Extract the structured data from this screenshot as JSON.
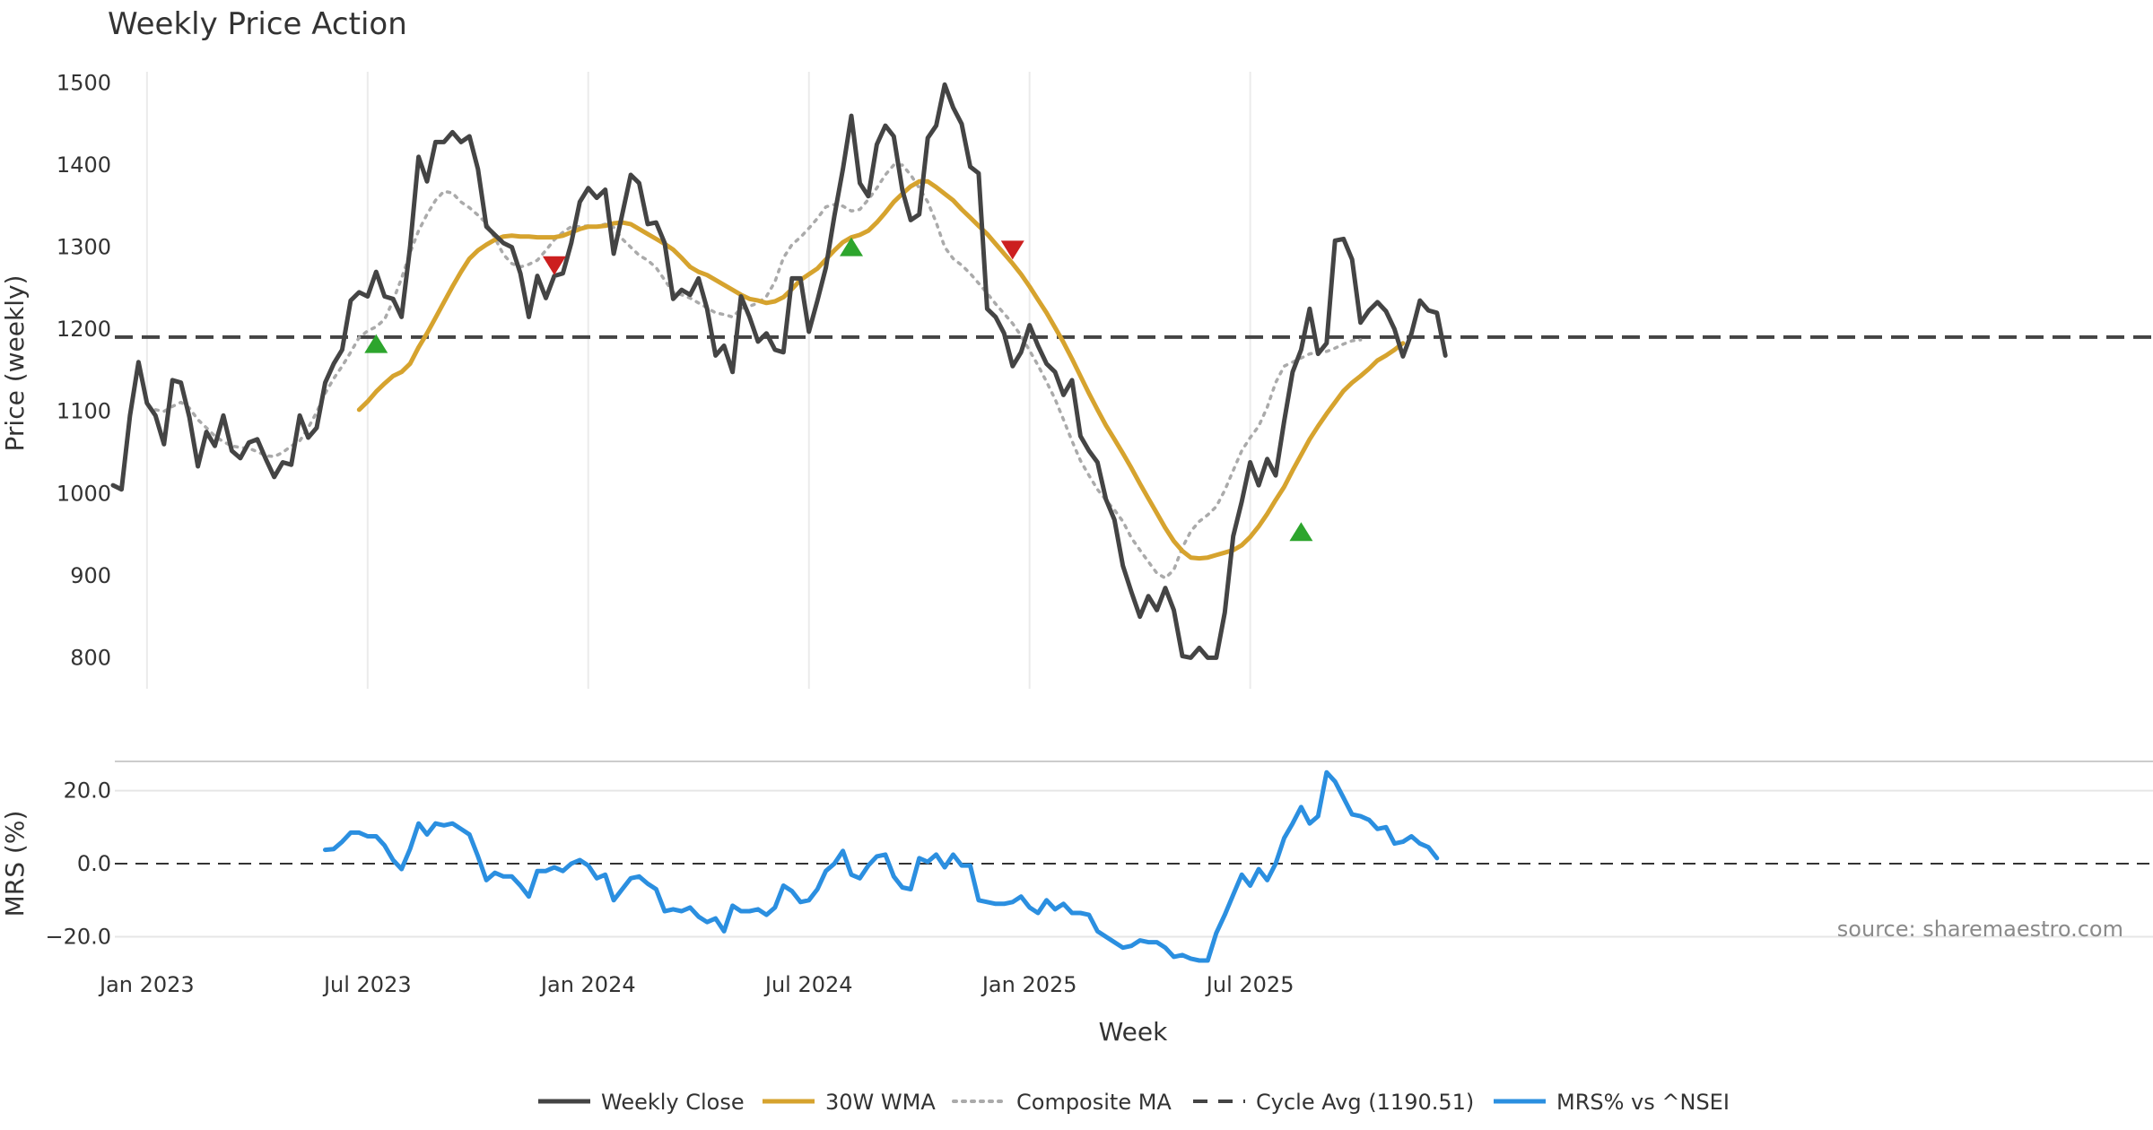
{
  "chart_data": {
    "type": "line",
    "title": "Weekly Price Action",
    "xlabel": "Week",
    "x_ticks": [
      "Jan 2023",
      "Jul 2023",
      "Jan 2024",
      "Jul 2024",
      "Jan 2025",
      "Jul 2025"
    ],
    "source_note": "source: sharemaestro.com",
    "price_panel": {
      "ylabel": "Price (weekly)",
      "ylim": [
        760,
        1530
      ],
      "y_ticks": [
        "800",
        "900",
        "1000",
        "1100",
        "1200",
        "1300",
        "1400",
        "1500"
      ],
      "cycle_avg": 1190.51,
      "series": [
        {
          "name": "Weekly Close",
          "color": "#444444",
          "style": "solid",
          "start_index": 0,
          "values": [
            1010,
            1005,
            1095,
            1160,
            1110,
            1095,
            1060,
            1138,
            1135,
            1093,
            1033,
            1075,
            1058,
            1095,
            1052,
            1043,
            1062,
            1066,
            1042,
            1020,
            1038,
            1035,
            1095,
            1068,
            1080,
            1135,
            1158,
            1175,
            1235,
            1245,
            1240,
            1270,
            1240,
            1237,
            1215,
            1300,
            1410,
            1380,
            1428,
            1428,
            1440,
            1428,
            1435,
            1395,
            1325,
            1315,
            1305,
            1300,
            1268,
            1215,
            1265,
            1238,
            1265,
            1268,
            1305,
            1355,
            1372,
            1360,
            1370,
            1292,
            1340,
            1388,
            1378,
            1328,
            1330,
            1305,
            1237,
            1248,
            1242,
            1262,
            1225,
            1168,
            1180,
            1148,
            1240,
            1215,
            1185,
            1195,
            1175,
            1172,
            1262,
            1262,
            1197,
            1235,
            1275,
            1338,
            1395,
            1460,
            1378,
            1362,
            1425,
            1448,
            1435,
            1370,
            1333,
            1340,
            1433,
            1448,
            1498,
            1470,
            1450,
            1398,
            1390,
            1225,
            1215,
            1195,
            1155,
            1172,
            1205,
            1180,
            1158,
            1148,
            1120,
            1138,
            1070,
            1052,
            1038,
            993,
            968,
            912,
            880,
            850,
            875,
            858,
            885,
            858,
            802,
            800,
            812,
            800,
            800,
            855,
            948,
            990,
            1038,
            1010,
            1042,
            1022,
            1088,
            1148,
            1175,
            1225,
            1170,
            1183,
            1308,
            1310,
            1285,
            1208,
            1223,
            1233,
            1222,
            1200,
            1167,
            1195,
            1235,
            1223,
            1220,
            1168
          ]
        },
        {
          "name": "30W WMA",
          "color": "#D6A32E",
          "style": "solid",
          "start_index": 29,
          "values": [
            1102,
            1112,
            1124,
            1134,
            1143,
            1148,
            1158,
            1178,
            1195,
            1214,
            1233,
            1252,
            1270,
            1286,
            1296,
            1303,
            1309,
            1313,
            1314,
            1313,
            1313,
            1312,
            1312,
            1312,
            1314,
            1318,
            1322,
            1325,
            1325,
            1326,
            1329,
            1330,
            1328,
            1322,
            1316,
            1310,
            1304,
            1297,
            1287,
            1276,
            1270,
            1266,
            1260,
            1254,
            1248,
            1242,
            1237,
            1235,
            1232,
            1234,
            1239,
            1249,
            1260,
            1267,
            1274,
            1285,
            1296,
            1306,
            1312,
            1315,
            1320,
            1330,
            1342,
            1355,
            1365,
            1374,
            1380,
            1380,
            1373,
            1365,
            1357,
            1346,
            1336,
            1326,
            1316,
            1304,
            1292,
            1280,
            1267,
            1252,
            1236,
            1220,
            1202,
            1184,
            1164,
            1143,
            1122,
            1102,
            1083,
            1066,
            1049,
            1031,
            1012,
            994,
            976,
            958,
            942,
            930,
            922,
            921,
            922,
            925,
            928,
            931,
            937,
            947,
            960,
            975,
            992,
            1008,
            1028,
            1047,
            1066,
            1082,
            1097,
            1111,
            1125,
            1135,
            1143,
            1152,
            1162,
            1168,
            1175,
            1183
          ]
        },
        {
          "name": "Composite MA",
          "color": "#AAAAAA",
          "style": "dotted",
          "start_index": 5,
          "values": [
            1102,
            1100,
            1106,
            1111,
            1104,
            1090,
            1080,
            1070,
            1063,
            1058,
            1056,
            1055,
            1051,
            1046,
            1045,
            1050,
            1058,
            1064,
            1080,
            1099,
            1122,
            1140,
            1155,
            1172,
            1190,
            1198,
            1203,
            1212,
            1235,
            1262,
            1293,
            1320,
            1340,
            1357,
            1368,
            1366,
            1355,
            1348,
            1339,
            1329,
            1311,
            1291,
            1280,
            1276,
            1279,
            1284,
            1296,
            1309,
            1318,
            1325,
            1325,
            1326,
            1325,
            1328,
            1324,
            1310,
            1300,
            1290,
            1284,
            1275,
            1260,
            1245,
            1242,
            1238,
            1232,
            1226,
            1220,
            1218,
            1215,
            1225,
            1228,
            1232,
            1240,
            1258,
            1287,
            1303,
            1312,
            1323,
            1335,
            1349,
            1352,
            1350,
            1344,
            1346,
            1358,
            1372,
            1388,
            1400,
            1400,
            1388,
            1372,
            1355,
            1330,
            1300,
            1286,
            1278,
            1268,
            1256,
            1244,
            1231,
            1219,
            1207,
            1192,
            1174,
            1156,
            1136,
            1115,
            1090,
            1064,
            1040,
            1022,
            1005,
            992,
            980,
            966,
            946,
            931,
            917,
            903,
            897,
            907,
            934,
            954,
            966,
            974,
            984,
            1004,
            1028,
            1052,
            1068,
            1082,
            1105,
            1135,
            1155,
            1160,
            1165,
            1170,
            1172,
            1173,
            1177,
            1182,
            1186,
            1187
          ]
        }
      ],
      "markers": [
        {
          "type": "buy",
          "color": "#2DA52D",
          "week": 31,
          "price": 1182
        },
        {
          "type": "sell",
          "color": "#CC1F1F",
          "week": 52,
          "price": 1278
        },
        {
          "type": "buy",
          "color": "#2DA52D",
          "week": 87,
          "price": 1300
        },
        {
          "type": "sell",
          "color": "#CC1F1F",
          "week": 106,
          "price": 1297
        },
        {
          "type": "buy",
          "color": "#2DA52D",
          "week": 140,
          "price": 953
        }
      ]
    },
    "mrs_panel": {
      "ylabel": "MRS (%)",
      "ylim": [
        -27,
        28
      ],
      "y_ticks": [
        "20.0",
        "0.0",
        "−20.0"
      ],
      "series": [
        {
          "name": "MRS% vs ^NSEI",
          "color": "#2B8FE0",
          "style": "solid",
          "start_index": 25,
          "values": [
            3.8,
            4,
            6,
            8.5,
            8.5,
            7.5,
            7.5,
            5,
            1,
            -1.5,
            4,
            11,
            8,
            11,
            10.5,
            11,
            9.5,
            8,
            2,
            -4.5,
            -2.5,
            -3.5,
            -3.5,
            -6,
            -9,
            -2,
            -2,
            -1,
            -2,
            0,
            1,
            -0.5,
            -4,
            -3,
            -10,
            -7,
            -4,
            -3.5,
            -5.5,
            -7,
            -13,
            -12.5,
            -13,
            -12,
            -14.5,
            -16,
            -15,
            -18.5,
            -11.5,
            -13,
            -13,
            -12.5,
            -14,
            -12,
            -6,
            -7.5,
            -10.5,
            -10,
            -7,
            -2,
            0,
            3.5,
            -3,
            -4,
            -0.5,
            2,
            2.5,
            -3.5,
            -6.5,
            -7,
            1.5,
            0.5,
            2.5,
            -1,
            2.5,
            -0.5,
            -0.5,
            -10,
            -10.5,
            -11,
            -11,
            -10.5,
            -9,
            -12,
            -13.5,
            -10,
            -12.5,
            -11,
            -13.5,
            -13.5,
            -14,
            -18.5,
            -20,
            -21.5,
            -23,
            -22.5,
            -21,
            -21.5,
            -21.5,
            -23,
            -25.5,
            -25,
            -26,
            -26.5,
            -26.5,
            -19,
            -14,
            -8.5,
            -3,
            -6,
            -1.5,
            -4.5,
            0,
            7,
            11,
            15.5,
            11,
            13,
            25,
            22.5,
            18,
            13.5,
            13,
            12,
            9.5,
            10,
            5.5,
            6,
            7.5,
            5.5,
            4.5,
            1.5
          ]
        }
      ]
    },
    "legend": [
      {
        "label": "Weekly Close",
        "color": "#444444",
        "style": "solid"
      },
      {
        "label": "30W WMA",
        "color": "#D6A32E",
        "style": "solid"
      },
      {
        "label": "Composite MA",
        "color": "#AAAAAA",
        "style": "dotted"
      },
      {
        "label": "Cycle Avg (1190.51)",
        "color": "#444444",
        "style": "dashed"
      },
      {
        "label": "MRS% vs ^NSEI",
        "color": "#2B8FE0",
        "style": "solid"
      }
    ]
  }
}
